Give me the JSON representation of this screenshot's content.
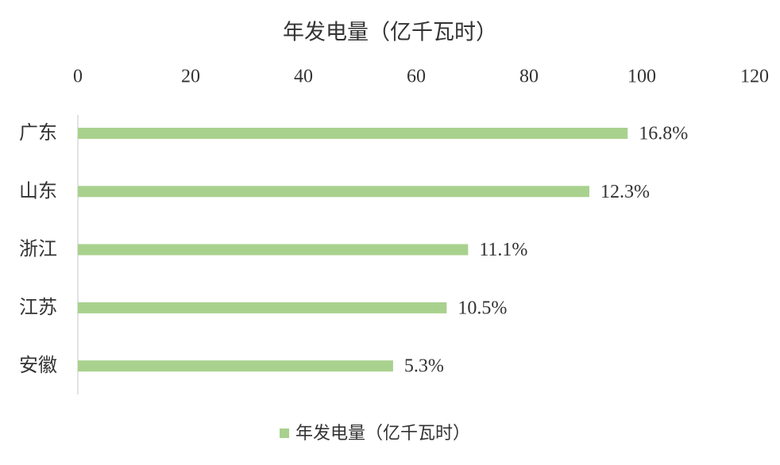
{
  "chart_data": {
    "type": "hbar",
    "title": "年发电量（亿千瓦时）",
    "categories": [
      "广东",
      "山东",
      "浙江",
      "江苏",
      "安徽"
    ],
    "series": [
      {
        "name": "年发电量（亿千瓦时）",
        "color": "#a9d18e",
        "values": [
          97.5,
          90.7,
          69.2,
          65.4,
          55.9
        ]
      }
    ],
    "data_labels": [
      "16.8%",
      "12.3%",
      "11.1%",
      "10.5%",
      "5.3%"
    ],
    "xlim": [
      0,
      120
    ],
    "xticks": [
      0,
      20,
      40,
      60,
      80,
      100,
      120
    ],
    "legend": "bottom"
  }
}
